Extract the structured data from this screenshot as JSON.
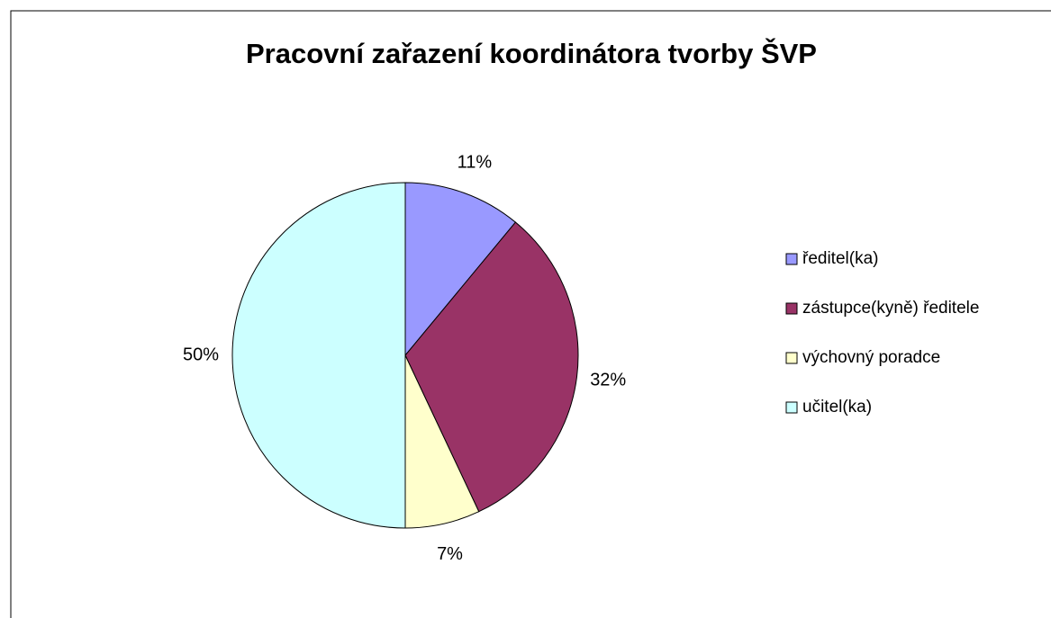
{
  "chart_data": {
    "type": "pie",
    "title": "Pracovní zařazení koordinátora tvorby ŠVP",
    "categories": [
      "ředitel(ka)",
      "zástupce(kyně) ředitele",
      "výchovný poradce",
      "učitel(ka)"
    ],
    "values": [
      11,
      32,
      7,
      50
    ],
    "value_labels": [
      "11%",
      "32%",
      "7%",
      "50%"
    ],
    "colors": [
      "#9999ff",
      "#993366",
      "#ffffcc",
      "#ccffff"
    ],
    "legend": "right"
  }
}
